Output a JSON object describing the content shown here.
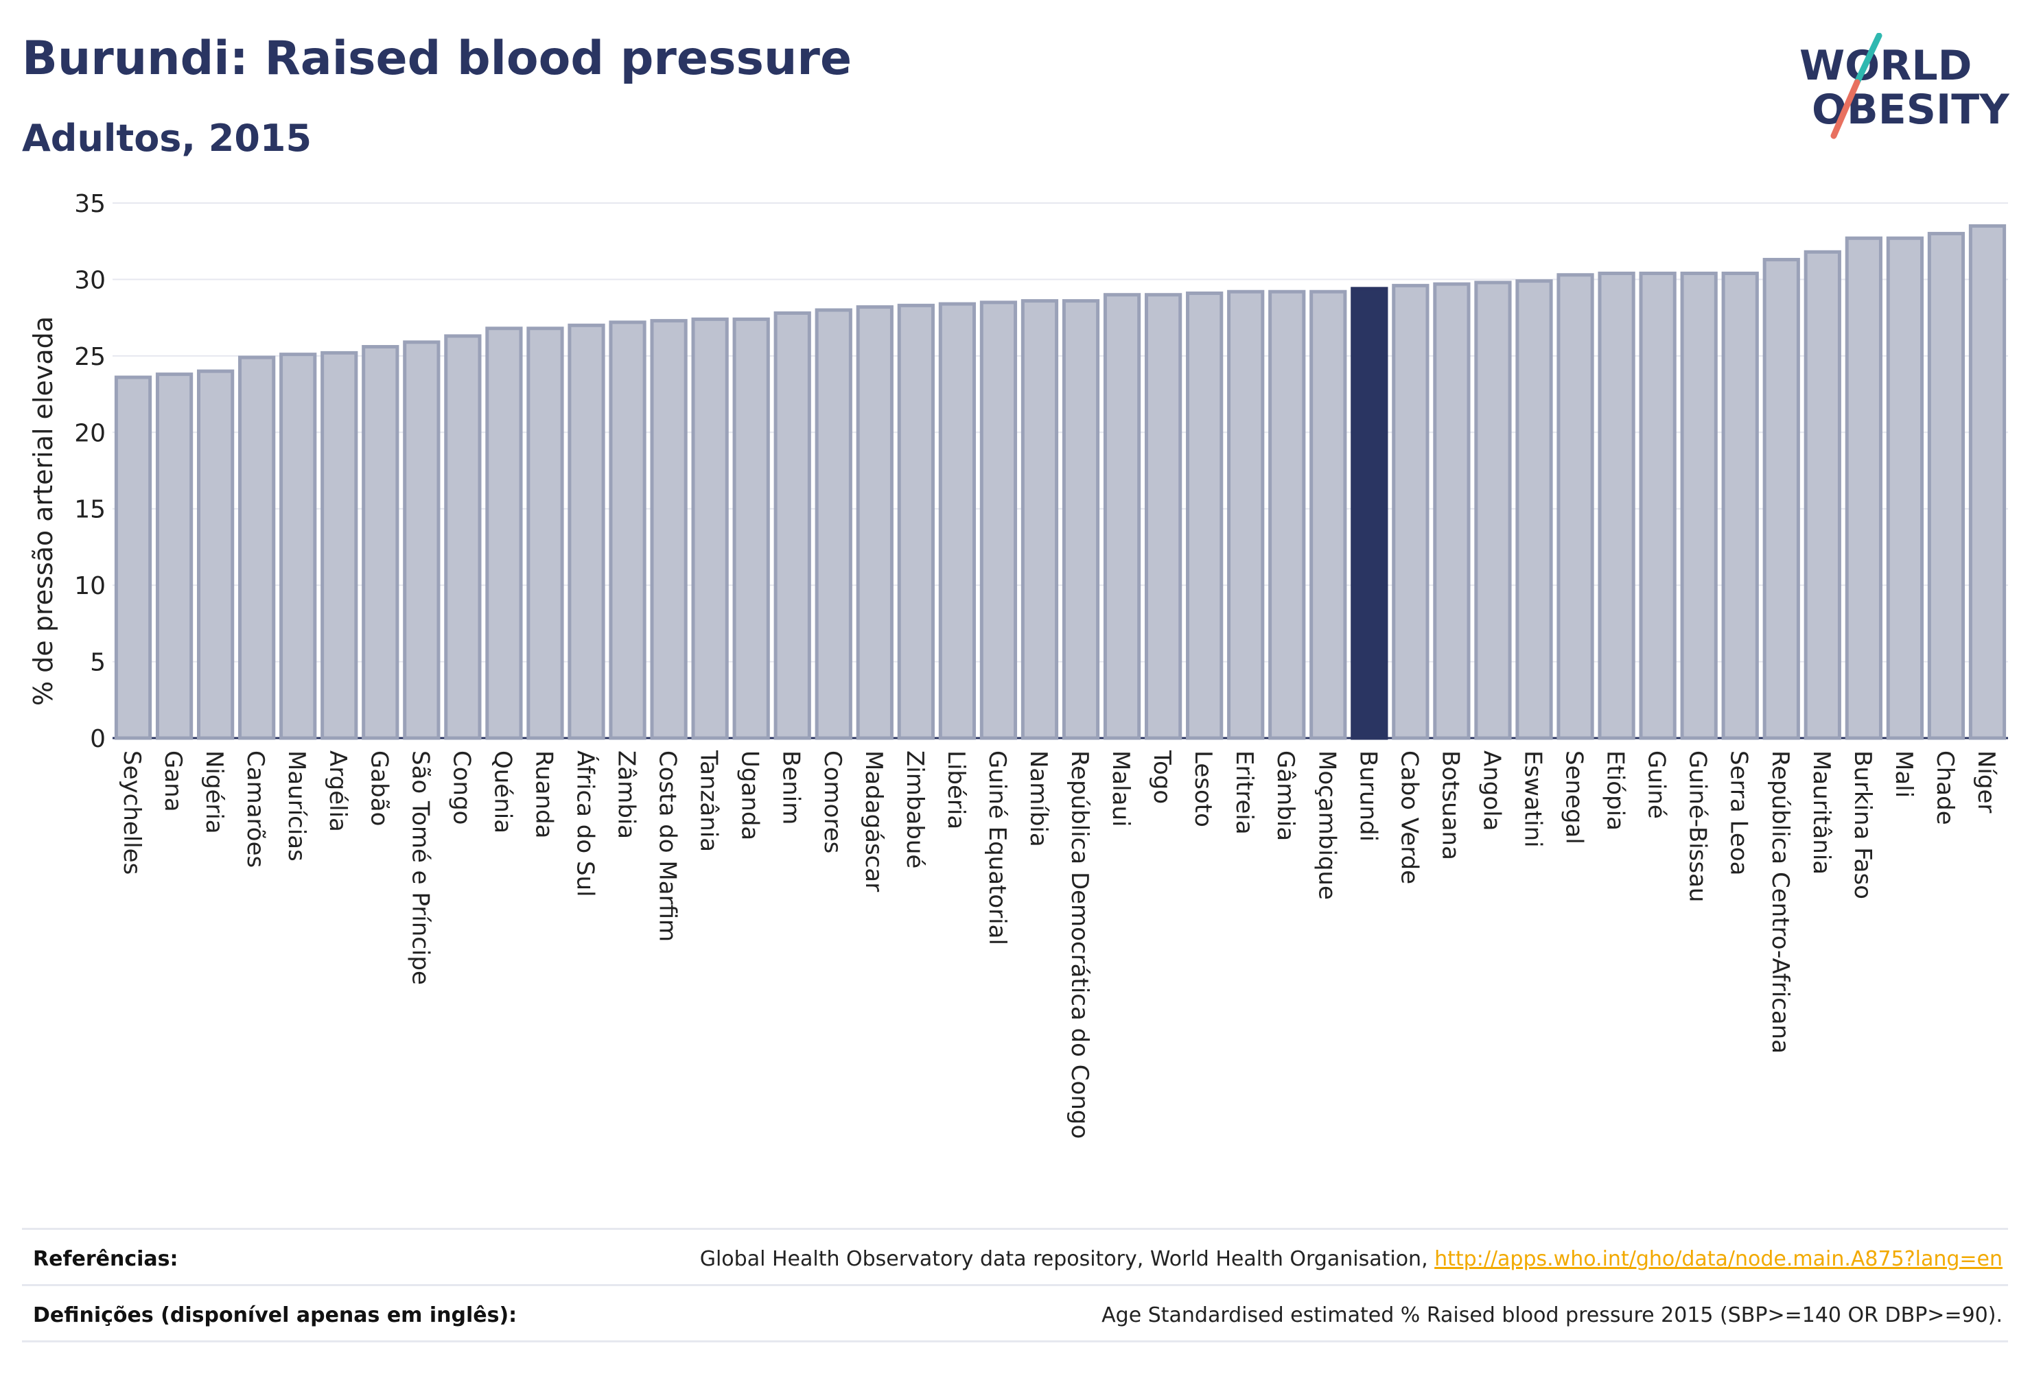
{
  "title": "Burundi: Raised blood pressure",
  "subtitle": "Adultos, 2015",
  "logo": {
    "line1": "WORLD",
    "line2": "OBESITY"
  },
  "colors": {
    "bar_fill": "#bec2d0",
    "bar_stroke": "#9aa1b8",
    "highlight": "#2a3562",
    "grid": "#e6e8ef",
    "text": "#2a3562",
    "logo_teal": "#2fb8b0",
    "logo_coral": "#e8705f"
  },
  "chart_data": {
    "type": "bar",
    "ylabel": "% de pressão arterial elevada",
    "xlabel": "",
    "ylim": [
      0,
      35
    ],
    "yticks": [
      0,
      5,
      10,
      15,
      20,
      25,
      30,
      35
    ],
    "highlight": "Burundi",
    "grid": true,
    "categories": [
      "Seychelles",
      "Gana",
      "Nigéria",
      "Camarões",
      "Maurícias",
      "Argélia",
      "Gabão",
      "São Tomé e Príncipe",
      "Congo",
      "Quénia",
      "Ruanda",
      "África do Sul",
      "Zâmbia",
      "Costa do Marfim",
      "Tanzânia",
      "Uganda",
      "Benim",
      "Comores",
      "Madagáscar",
      "Zimbabué",
      "Libéria",
      "Guiné Equatorial",
      "Namíbia",
      "República Democrática do Congo",
      "Malaui",
      "Togo",
      "Lesoto",
      "Eritreia",
      "Gâmbia",
      "Moçambique",
      "Burundi",
      "Cabo Verde",
      "Botsuana",
      "Angola",
      "Eswatini",
      "Senegal",
      "Etiópia",
      "Guiné",
      "Guiné-Bissau",
      "Serra Leoa",
      "República Centro-Africana",
      "Mauritânia",
      "Burkina Faso",
      "Mali",
      "Chade",
      "Níger"
    ],
    "values": [
      23.6,
      23.8,
      24.0,
      24.9,
      25.1,
      25.2,
      25.6,
      25.9,
      26.3,
      26.8,
      26.8,
      27.0,
      27.2,
      27.3,
      27.4,
      27.4,
      27.8,
      28.0,
      28.2,
      28.3,
      28.4,
      28.5,
      28.6,
      28.6,
      29.0,
      29.0,
      29.1,
      29.2,
      29.2,
      29.2,
      29.4,
      29.6,
      29.7,
      29.8,
      29.9,
      30.3,
      30.4,
      30.4,
      30.4,
      30.4,
      31.3,
      31.8,
      32.7,
      32.7,
      33.0,
      33.5
    ]
  },
  "footer": {
    "ref_label": "Referências:",
    "ref_text": "Global Health Observatory data repository, World Health Organisation, ",
    "ref_link": "http://apps.who.int/gho/data/node.main.A875?lang=en",
    "def_label": "Definições (disponível apenas em inglês):",
    "def_text": "Age Standardised estimated % Raised blood pressure 2015 (SBP>=140 OR DBP>=90)."
  }
}
